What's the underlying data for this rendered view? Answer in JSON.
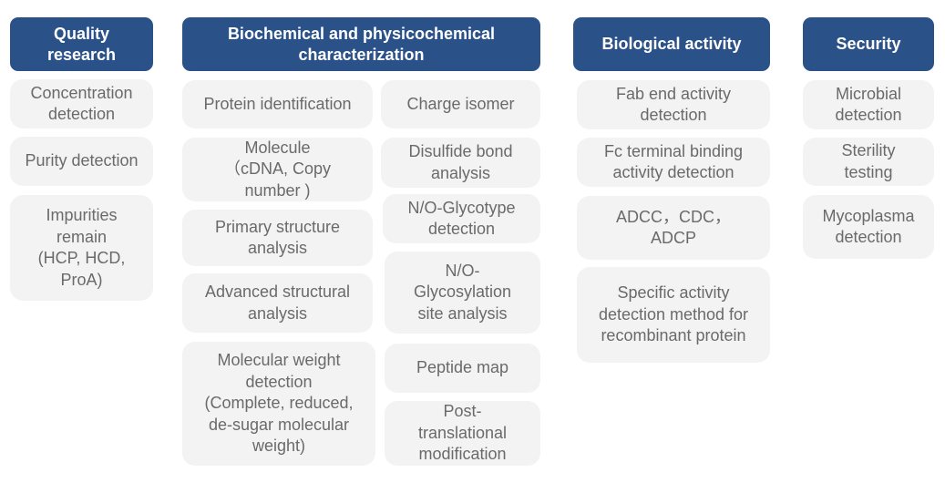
{
  "colors": {
    "header_bg": "#2b5189",
    "box_bg": "#f3f3f3",
    "box_text": "#6a6a6a"
  },
  "columns": [
    {
      "title": "Quality\nresearch",
      "items": [
        "Concentration\ndetection",
        "Purity detection",
        "Impurities\nremain\n(HCP, HCD,\nProA)"
      ]
    },
    {
      "title": "Biochemical and physicochemical\ncharacterization",
      "items": [
        "Protein identification",
        "Molecule\n（cDNA, Copy\nnumber )",
        "Primary structure\nanalysis",
        "Advanced structural\nanalysis",
        "Molecular weight\ndetection\n(Complete, reduced,\nde-sugar molecular\nweight)",
        "Charge isomer",
        "Disulfide bond\nanalysis",
        "N/O-Glycotype\ndetection",
        "N/O-\nGlycosylation\nsite analysis",
        "Peptide map",
        "Post-\ntranslational\nmodification"
      ]
    },
    {
      "title": "Biological activity",
      "items": [
        "Fab end activity\ndetection",
        "Fc terminal binding\nactivity detection",
        "ADCC，CDC，\nADCP",
        "Specific activity\ndetection method for\nrecombinant protein"
      ]
    },
    {
      "title": "Security",
      "items": [
        "Microbial\ndetection",
        "Sterility\ntesting",
        "Mycoplasma\ndetection"
      ]
    }
  ]
}
